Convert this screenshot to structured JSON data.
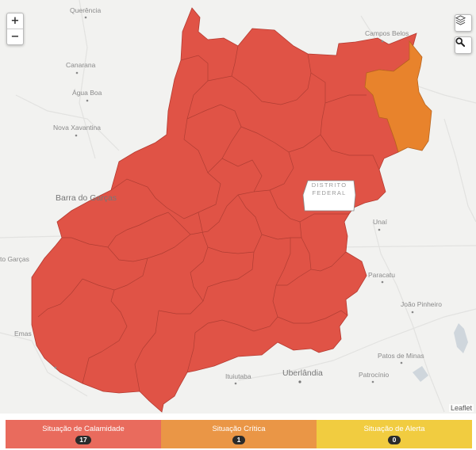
{
  "map": {
    "zoom_in": "+",
    "zoom_out": "−",
    "attribution": "Leaflet",
    "district_label_line1": "DISTRITO",
    "district_label_line2": "FEDERAL",
    "cities": {
      "querencia": "Querência",
      "campos_belos": "Campos Belos",
      "canarana": "Canarana",
      "agua_boa": "Água Boa",
      "nova_xavantina": "Nova Xavantina",
      "barra_do_garcas": "Barra do Garças",
      "unai": "Unaí",
      "paracatu": "Paracatu",
      "joao_pinheiro": "João Pinheiro",
      "patos_de_minas": "Patos de Minas",
      "patrocinio": "Patrocínio",
      "uberlandia": "Uberlândia",
      "ituiutaba": "Ituiutaba",
      "to_garcas": "to Garças",
      "emas": "Emas"
    },
    "colors": {
      "calamity": "#e05346",
      "critical": "#e8832c",
      "district": "#ffffff",
      "background": "#f2f2f0"
    }
  },
  "legend": [
    {
      "label": "Situação de Calamidade",
      "count": "17",
      "color": "#e96b5d"
    },
    {
      "label": "Situação Crítica",
      "count": "1",
      "color": "#ea9646"
    },
    {
      "label": "Situação de Alerta",
      "count": "0",
      "color": "#f1cc40"
    }
  ]
}
